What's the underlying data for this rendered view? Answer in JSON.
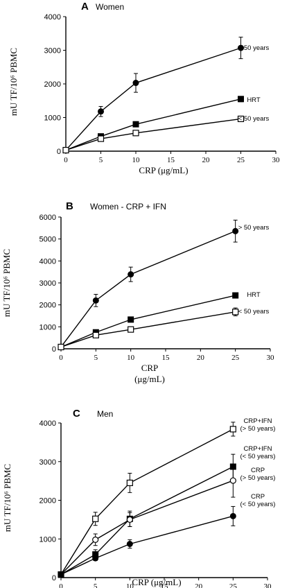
{
  "chart_data": [
    {
      "type": "line",
      "letter": "A",
      "title": "Women",
      "xlabel": "CRP (μg/mL)",
      "ylabel": "mU TF/10⁶ PBMC",
      "x": [
        0,
        5,
        10,
        25
      ],
      "xticks": [
        0,
        5,
        10,
        15,
        20,
        25,
        30
      ],
      "yticks": [
        0,
        1000,
        2000,
        3000,
        4000
      ],
      "xlim": [
        0,
        30
      ],
      "ylim": [
        0,
        4000
      ],
      "series": [
        {
          "name": "> 50 years",
          "marker": "filled-circle",
          "values": [
            30,
            1180,
            2030,
            3070
          ],
          "errors": [
            0,
            150,
            280,
            320
          ]
        },
        {
          "name": "HRT",
          "marker": "filled-square",
          "values": [
            30,
            440,
            800,
            1550
          ],
          "errors": [
            0,
            40,
            70,
            80
          ]
        },
        {
          "name": "< 50 years",
          "marker": "open-square",
          "values": [
            30,
            370,
            540,
            960
          ],
          "errors": [
            0,
            30,
            40,
            50
          ]
        }
      ]
    },
    {
      "type": "line",
      "letter": "B",
      "title": "Women - CRP + IFN",
      "xlabel": "CRP",
      "xlabel2": "(μg/mL)",
      "ylabel": "mU TF/10⁶ PBMC",
      "x": [
        0,
        5,
        10,
        25
      ],
      "xticks": [
        0,
        5,
        10,
        15,
        20,
        25,
        30
      ],
      "yticks": [
        0,
        1000,
        2000,
        3000,
        4000,
        5000,
        6000
      ],
      "xlim": [
        0,
        30
      ],
      "ylim": [
        0,
        6000
      ],
      "series": [
        {
          "name": "> 50 years",
          "marker": "filled-circle",
          "values": [
            80,
            2200,
            3390,
            5360
          ],
          "errors": [
            0,
            280,
            330,
            500
          ]
        },
        {
          "name": "HRT",
          "marker": "filled-square",
          "values": [
            80,
            750,
            1330,
            2430
          ],
          "errors": [
            0,
            60,
            80,
            90
          ]
        },
        {
          "name": "< 50 years",
          "marker": "open-square",
          "values": [
            80,
            620,
            880,
            1680
          ],
          "errors": [
            0,
            50,
            70,
            180
          ]
        }
      ]
    },
    {
      "type": "line",
      "letter": "C",
      "title": "Men",
      "xlabel": "CRP (μg/mL)",
      "ylabel": "mU TF/10⁶ PBMC",
      "x": [
        0,
        5,
        10,
        25
      ],
      "xticks": [
        0,
        5,
        10,
        15,
        20,
        25,
        30
      ],
      "yticks": [
        0,
        1000,
        2000,
        3000,
        4000
      ],
      "xlim": [
        0,
        30
      ],
      "ylim": [
        0,
        4000
      ],
      "series": [
        {
          "name": "CRP+IFN",
          "name2": "(> 50 years)",
          "marker": "open-square",
          "values": [
            80,
            1520,
            2450,
            3840
          ],
          "errors": [
            0,
            170,
            250,
            180
          ]
        },
        {
          "name": "CRP+IFN",
          "name2": "(< 50 years)",
          "marker": "filled-square",
          "values": [
            80,
            600,
            1520,
            2870
          ],
          "errors": [
            0,
            120,
            200,
            320
          ]
        },
        {
          "name": "CRP",
          "name2": "(> 50 years)",
          "marker": "open-circle",
          "values": [
            80,
            980,
            1500,
            2510
          ],
          "errors": [
            0,
            150,
            180,
            430
          ]
        },
        {
          "name": "CRP",
          "name2": "(< 50 years)",
          "marker": "filled-circle",
          "values": [
            80,
            500,
            870,
            1590
          ],
          "errors": [
            0,
            60,
            110,
            250
          ]
        }
      ]
    }
  ]
}
